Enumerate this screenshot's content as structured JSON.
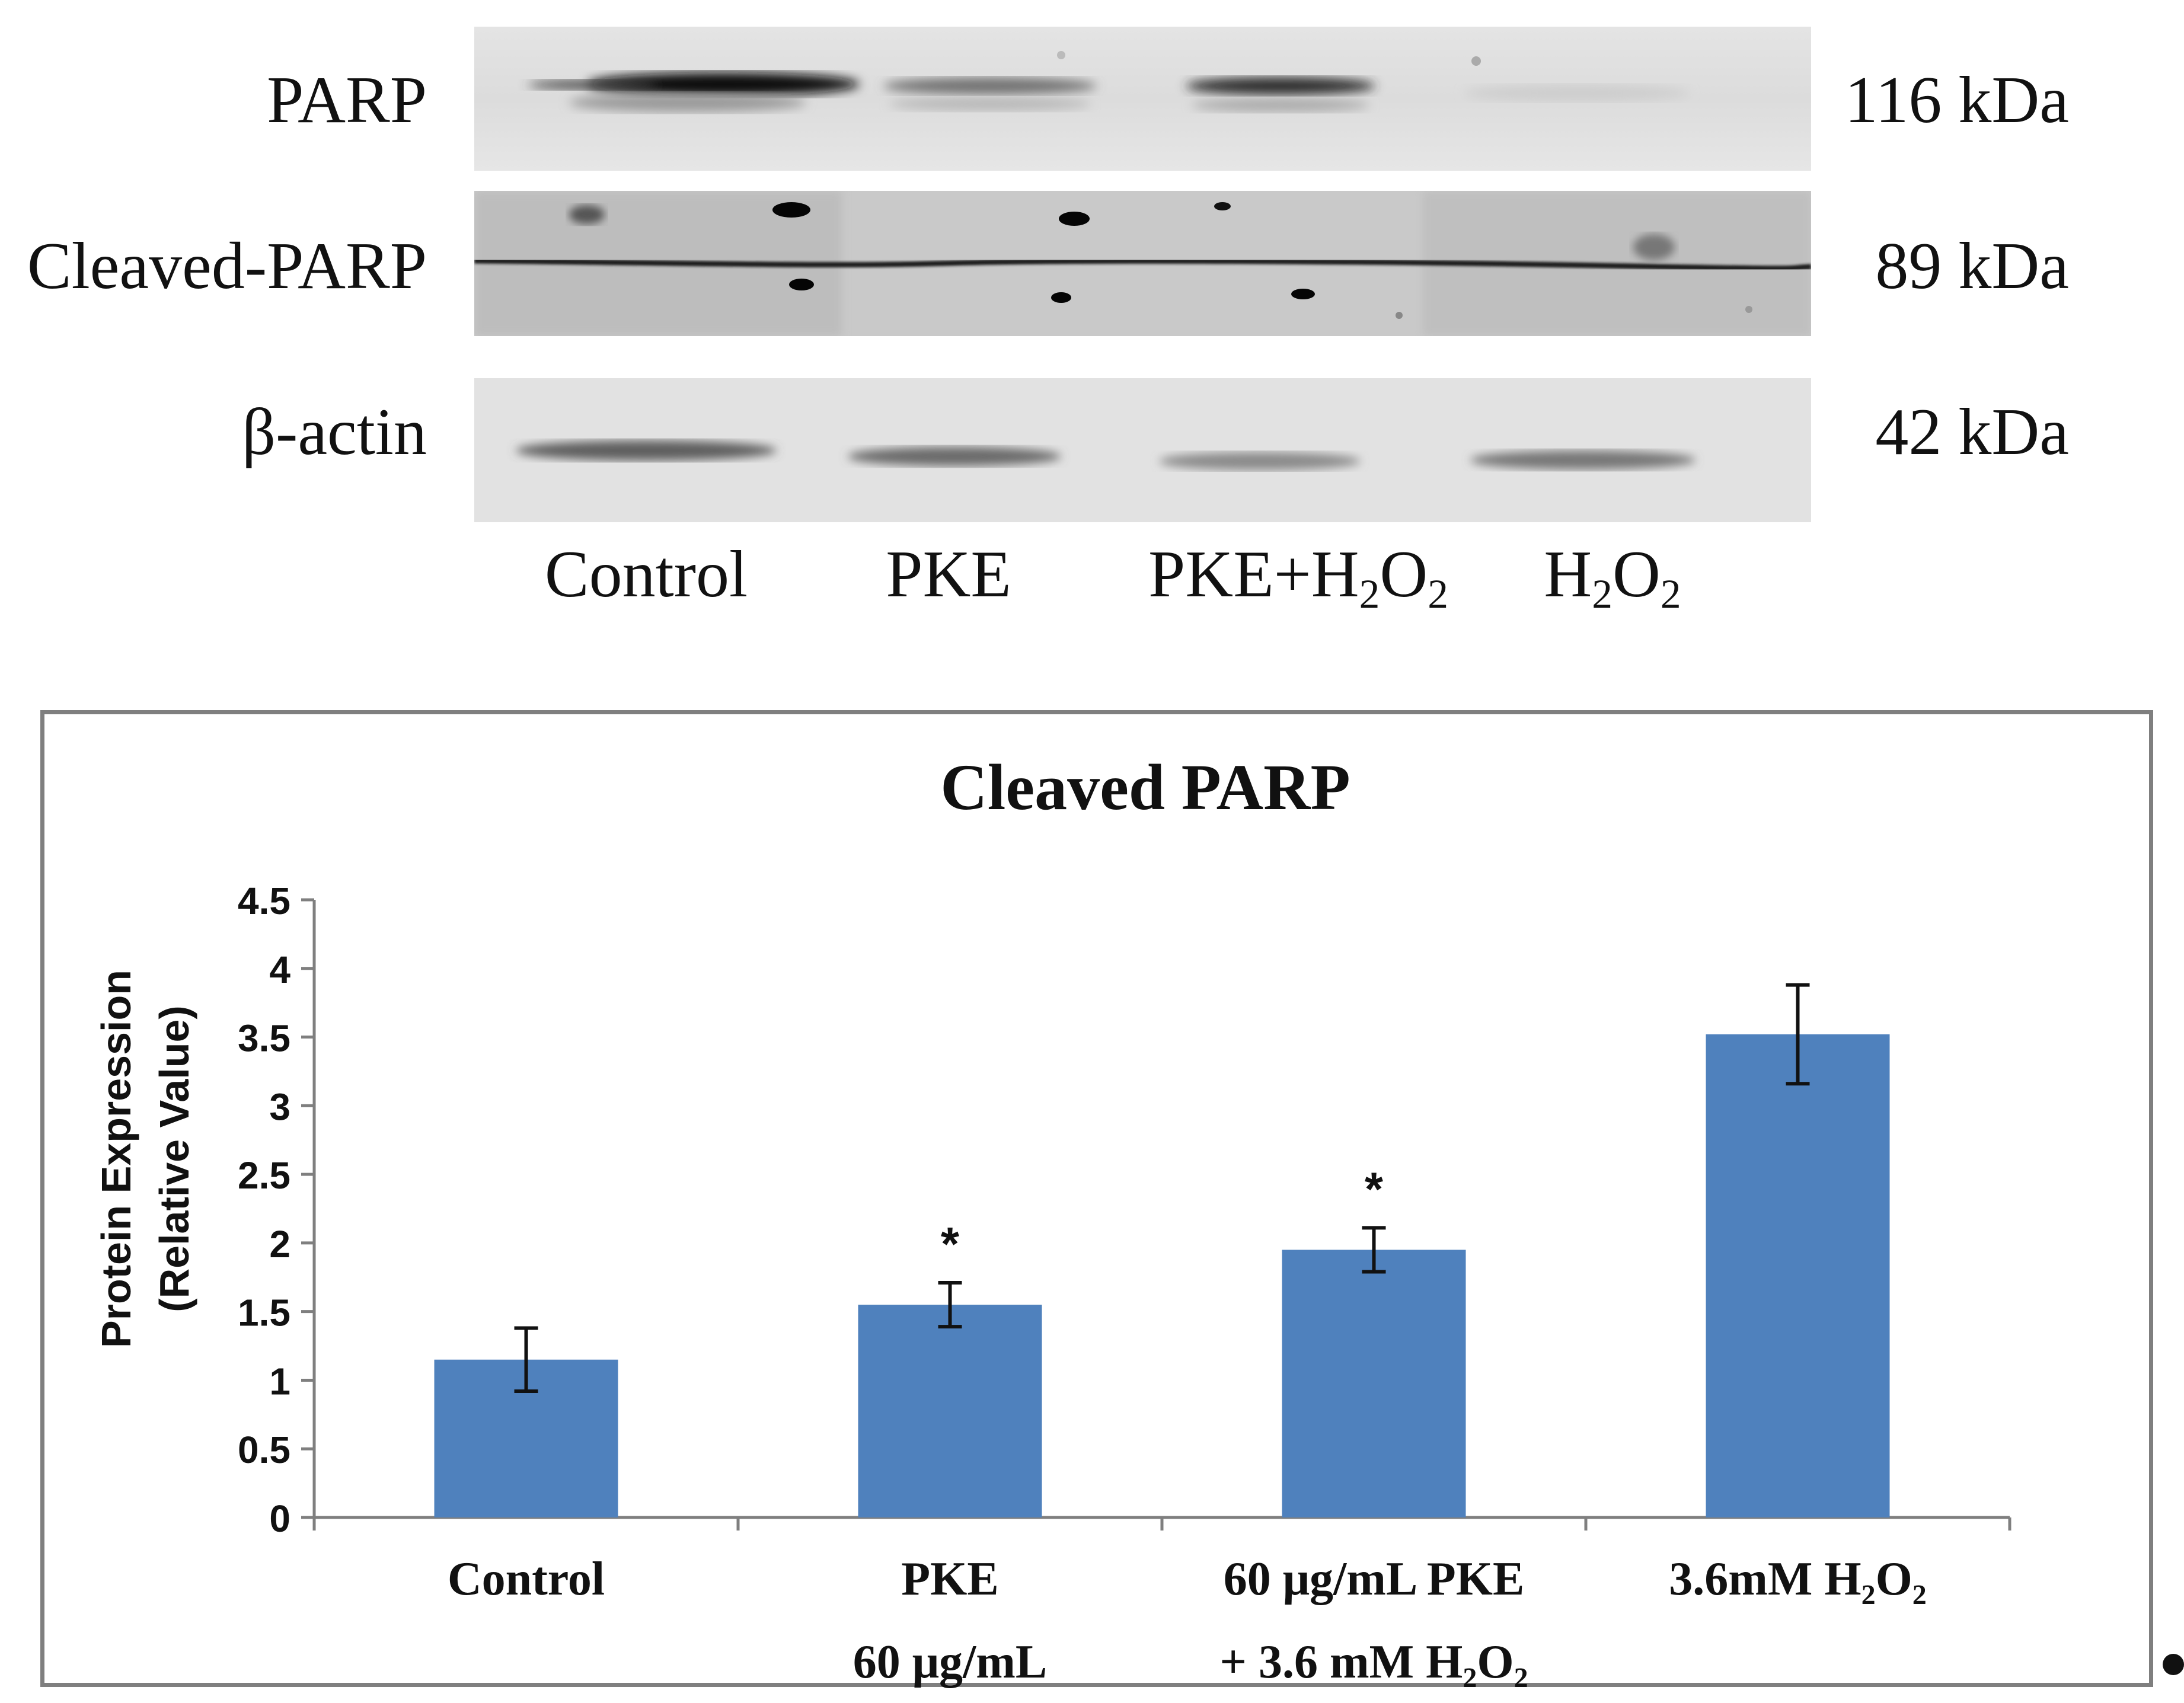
{
  "blot": {
    "bands": [
      {
        "label": "PARP",
        "kda": "116 kDa"
      },
      {
        "label": "Cleaved-PARP",
        "kda": "89 kDa"
      },
      {
        "label": "β-actin",
        "kda": "42 kDa"
      }
    ],
    "lanes": [
      {
        "main": "Control",
        "sub1": "",
        "mid": "",
        "sub2": ""
      },
      {
        "main": "PKE",
        "sub1": "",
        "mid": "",
        "sub2": ""
      },
      {
        "main": "PKE+H",
        "sub1": "2",
        "mid": "O",
        "sub2": "2"
      },
      {
        "main": "H",
        "sub1": "2",
        "mid": "O",
        "sub2": "2"
      }
    ]
  },
  "chart_data": {
    "type": "bar",
    "title": "Cleaved PARP",
    "ylabel_line1": "Protein Expression",
    "ylabel_line2": "(Relative Value)",
    "categories": [
      [
        "Control"
      ],
      [
        "PKE",
        "60 μg/mL"
      ],
      [
        "60 μg/mL PKE",
        "+ 3.6 mM H₂O₂"
      ],
      [
        "3.6mM H₂O₂"
      ]
    ],
    "values": [
      1.15,
      1.55,
      1.95,
      3.52
    ],
    "errors": [
      0.23,
      0.16,
      0.16,
      0.36
    ],
    "significance": [
      "",
      "*",
      "*",
      ""
    ],
    "ylim": [
      0,
      4.5
    ],
    "yticks": [
      "0",
      "0.5",
      "1",
      "1.5",
      "2",
      "2.5",
      "3",
      "3.5",
      "4",
      "4.5"
    ],
    "bar_color": "#4f81bd",
    "grid": false,
    "legend": "none"
  }
}
